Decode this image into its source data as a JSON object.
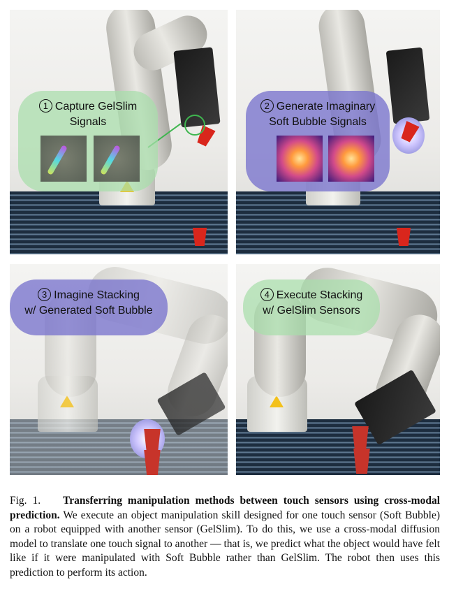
{
  "panels": [
    {
      "step": "1",
      "title_line1": "Capture GelSlim",
      "title_line2": "Signals"
    },
    {
      "step": "2",
      "title_line1": "Generate Imaginary",
      "title_line2": "Soft Bubble Signals"
    },
    {
      "step": "3",
      "title_line1": "Imagine Stacking",
      "title_line2": "w/ Generated Soft Bubble"
    },
    {
      "step": "4",
      "title_line1": "Execute Stacking",
      "title_line2": "w/ GelSlim Sensors"
    }
  ],
  "caption": {
    "fig_label": "Fig. 1.",
    "bold_text": "Transferring manipulation methods between touch sensors using cross-modal prediction.",
    "body_text": "We execute an object manipulation skill designed for one touch sensor (Soft Bubble) on a robot equipped with another sensor (GelSlim). To do this, we use a cross-modal diffusion model to translate one touch signal to another — that is, we predict what the object would have felt like if it were manipulated with Soft Bubble rather than GelSlim. The robot then uses this prediction to perform its action."
  },
  "colors": {
    "green_bubble": "#a8deaa",
    "violet_bubble": "#7873cd",
    "cup_red": "#d9261c"
  }
}
